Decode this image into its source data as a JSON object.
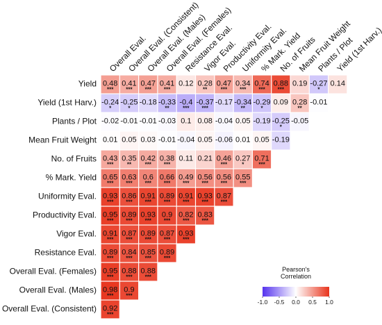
{
  "chart_data": {
    "type": "heatmap",
    "columns": [
      "Overall Eval.",
      "Overall Eval. (Consistent)",
      "Overall Eval. (Males)",
      "Overall Eval. (Females)",
      "Resistance Eval.",
      "Vigor Eval.",
      "Productivity Eval.",
      "Uniformity Eval.",
      "% Mark. Yield",
      "No. of Fruits",
      "Mean Fruit Weight",
      "Plants / Plot",
      "Yield (1st Harv.)"
    ],
    "rows": [
      {
        "label": "Yield",
        "values": [
          "0.48",
          "0.41",
          "0.47",
          "0.41",
          "0.12",
          "0.28",
          "0.47",
          "0.34",
          "0.74",
          "0.88",
          "0.19",
          "-0.27",
          "0.14"
        ],
        "sig": [
          "***",
          "***",
          "***",
          "***",
          "",
          "**",
          "***",
          "***",
          "***",
          "***",
          "",
          "*",
          ""
        ]
      },
      {
        "label": "Yield (1st Harv.)",
        "values": [
          "-0.24",
          "-0.25",
          "-0.18",
          "-0.33",
          "-0.4",
          "-0.37",
          "-0.17",
          "-0.34",
          "-0.29",
          "0.09",
          "0.28",
          "-0.01"
        ],
        "sig": [
          "*",
          "*",
          "",
          "**",
          "***",
          "***",
          "",
          "**",
          "*",
          "",
          "**",
          ""
        ]
      },
      {
        "label": "Plants / Plot",
        "values": [
          "-0.02",
          "-0.01",
          "-0.01",
          "-0.03",
          "0.1",
          "0.08",
          "-0.04",
          "0.05",
          "-0.19",
          "-0.25",
          "-0.05"
        ],
        "sig": [
          "",
          "",
          "",
          "",
          "",
          "",
          "",
          "",
          "",
          "*",
          ""
        ]
      },
      {
        "label": "Mean Fruit Weight",
        "values": [
          "0.01",
          "0.05",
          "0.03",
          "-0.01",
          "-0.04",
          "0.05",
          "-0.06",
          "0.01",
          "0.05",
          "-0.19"
        ],
        "sig": [
          "",
          "",
          "",
          "",
          "",
          "",
          "",
          "",
          "",
          ""
        ]
      },
      {
        "label": "No. of Fruits",
        "values": [
          "0.43",
          "0.35",
          "0.42",
          "0.38",
          "0.11",
          "0.21",
          "0.46",
          "0.27",
          "0.71"
        ],
        "sig": [
          "***",
          "**",
          "***",
          "***",
          "",
          "",
          "***",
          "*",
          "***"
        ]
      },
      {
        "label": "% Mark. Yield",
        "values": [
          "0.65",
          "0.63",
          "0.6",
          "0.66",
          "0.49",
          "0.56",
          "0.56",
          "0.55"
        ],
        "sig": [
          "***",
          "***",
          "***",
          "***",
          "***",
          "***",
          "***",
          "***"
        ]
      },
      {
        "label": "Uniformity Eval.",
        "values": [
          "0.93",
          "0.86",
          "0.91",
          "0.89",
          "0.91",
          "0.93",
          "0.87"
        ],
        "sig": [
          "***",
          "***",
          "***",
          "***",
          "***",
          "***",
          "***"
        ]
      },
      {
        "label": "Productivity Eval.",
        "values": [
          "0.95",
          "0.89",
          "0.93",
          "0.9",
          "0.82",
          "0.83"
        ],
        "sig": [
          "***",
          "***",
          "***",
          "***",
          "***",
          "***"
        ]
      },
      {
        "label": "Vigor Eval.",
        "values": [
          "0.91",
          "0.87",
          "0.89",
          "0.87",
          "0.93"
        ],
        "sig": [
          "***",
          "***",
          "***",
          "***",
          "***"
        ]
      },
      {
        "label": "Resistance Eval.",
        "values": [
          "0.89",
          "0.84",
          "0.85",
          "0.89"
        ],
        "sig": [
          "***",
          "***",
          "***",
          "***"
        ]
      },
      {
        "label": "Overall Eval. (Females)",
        "values": [
          "0.95",
          "0.88",
          "0.88"
        ],
        "sig": [
          "***",
          "***",
          "***"
        ]
      },
      {
        "label": "Overall Eval. (Males)",
        "values": [
          "0.98",
          "0.9"
        ],
        "sig": [
          "***",
          "***"
        ]
      },
      {
        "label": "Overall Eval. (Consistent)",
        "values": [
          "0.92"
        ],
        "sig": [
          "***"
        ]
      }
    ],
    "color_range": [
      -1.0,
      1.0
    ],
    "colors": {
      "negative": "#5533ee",
      "neutral": "#ffffff",
      "positive": "#e8341c"
    },
    "legend": {
      "title_line1": "Pearson's",
      "title_line2": "Correlation",
      "ticks": [
        "-1.0",
        "-0.5",
        "0.0",
        "0.5",
        "1.0"
      ],
      "position": "bottom-right"
    }
  }
}
